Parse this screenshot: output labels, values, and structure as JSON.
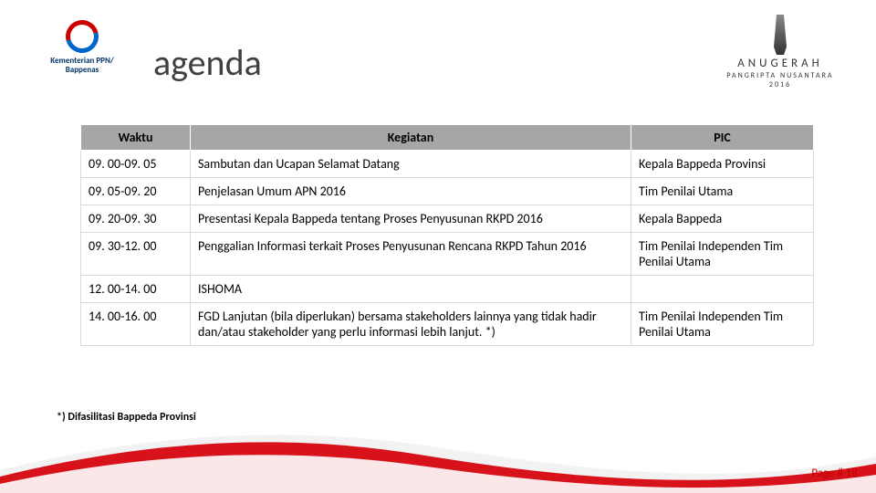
{
  "logo_left": {
    "line1": "Kementerian PPN/",
    "line2": "Bappenas"
  },
  "title": "agenda",
  "logo_right": {
    "title": "ANUGERAH",
    "sub1": "PANGRIPTA NUSANTARA",
    "sub2": "2016"
  },
  "table": {
    "headers": {
      "time": "Waktu",
      "activity": "Kegiatan",
      "pic": "PIC"
    },
    "rows": [
      {
        "time": "09. 00-09. 05",
        "activity": "Sambutan dan Ucapan Selamat Datang",
        "pic": "Kepala Bappeda Provinsi"
      },
      {
        "time": "09. 05-09. 20",
        "activity": "Penjelasan Umum APN 2016",
        "pic": "Tim Penilai Utama"
      },
      {
        "time": "09. 20-09. 30",
        "activity": "Presentasi Kepala Bappeda tentang Proses Penyusunan RKPD 2016",
        "pic": "Kepala Bappeda"
      },
      {
        "time": "09. 30-12. 00",
        "activity": "Penggalian Informasi terkait Proses Penyusunan Rencana RKPD Tahun 2016",
        "pic": "Tim Penilai Independen Tim Penilai Utama"
      },
      {
        "time": "12. 00-14. 00",
        "activity": "ISHOMA",
        "pic": ""
      },
      {
        "time": "14. 00-16. 00",
        "activity": "FGD Lanjutan (bila diperlukan) bersama stakeholders lainnya yang tidak hadir dan/atau stakeholder yang perlu informasi lebih lanjut. *)",
        "pic": "Tim Penilai Independen Tim Penilai Utama"
      }
    ]
  },
  "footnote": "*) Difasilitasi Bappeda Provinsi",
  "page": "Page # 18",
  "colors": {
    "header_bg": "#a6a6a6",
    "border": "#d9d9d9",
    "page_num": "#c00000",
    "wave_red": "#d8121b",
    "wave_white": "#f7f7f7"
  }
}
